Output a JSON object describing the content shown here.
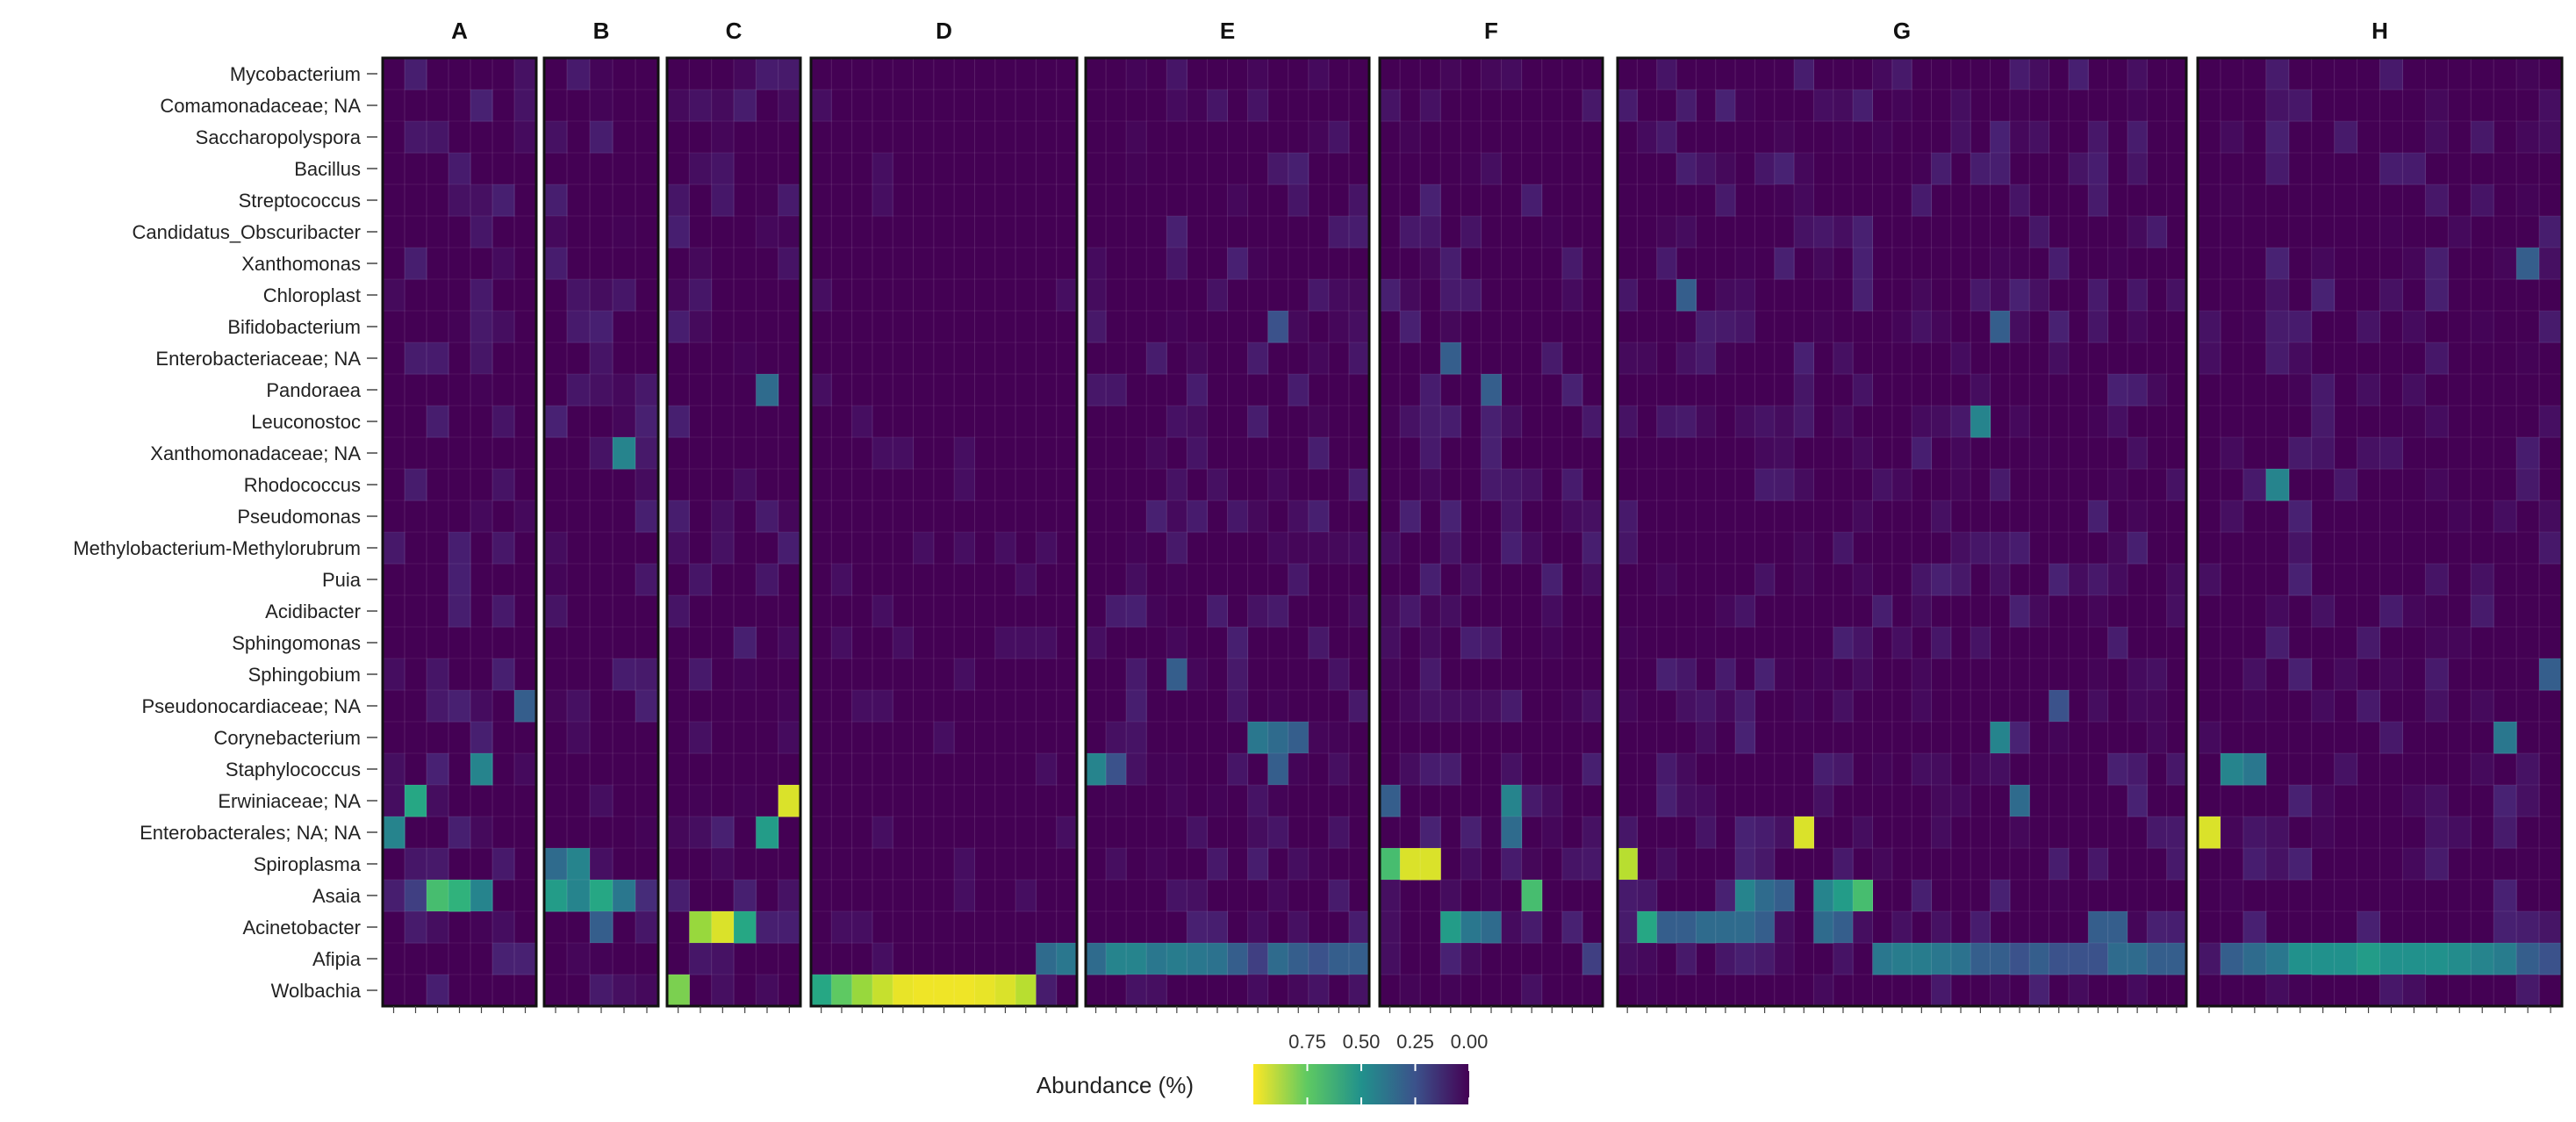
{
  "chart_data": {
    "type": "heatmap",
    "colormap": "viridis",
    "background_color": "#440154",
    "facets": [
      "A",
      "B",
      "C",
      "D",
      "E",
      "F",
      "G",
      "H"
    ],
    "facet_columns": [
      7,
      5,
      6,
      13,
      14,
      11,
      29,
      16
    ],
    "rows": [
      "Mycobacterium",
      "Comamonadaceae; NA",
      "Saccharopolyspora",
      "Bacillus",
      "Streptococcus",
      "Candidatus_Obscuribacter",
      "Xanthomonas",
      "Chloroplast",
      "Bifidobacterium",
      "Enterobacteriaceae; NA",
      "Pandoraea",
      "Leuconostoc",
      "Xanthomonadaceae; NA",
      "Rhodococcus",
      "Pseudomonas",
      "Methylobacterium-Methylorubrum",
      "Puia",
      "Acidibacter",
      "Sphingomonas",
      "Sphingobium",
      "Pseudonocardiaceae; NA",
      "Corynebacterium",
      "Staphylococcus",
      "Erwiniaceae; NA",
      "Enterobacterales; NA; NA",
      "Spiroplasma",
      "Asaia",
      "Acinetobacter",
      "Afipia",
      "Wolbachia"
    ],
    "cells": [
      {
        "facet": "A",
        "row": "Erwiniaceae; NA",
        "col": 1,
        "value": 0.6
      },
      {
        "facet": "A",
        "row": "Enterobacterales; NA; NA",
        "col": 0,
        "value": 0.45
      },
      {
        "facet": "A",
        "row": "Staphylococcus",
        "col": 4,
        "value": 0.45
      },
      {
        "facet": "A",
        "row": "Pseudonocardiaceae; NA",
        "col": 6,
        "value": 0.3
      },
      {
        "facet": "A",
        "row": "Asaia",
        "col": 2,
        "value": 0.7
      },
      {
        "facet": "A",
        "row": "Asaia",
        "col": 3,
        "value": 0.65
      },
      {
        "facet": "A",
        "row": "Asaia",
        "col": 4,
        "value": 0.45
      },
      {
        "facet": "A",
        "row": "Asaia",
        "col": 1,
        "value": 0.2
      },
      {
        "facet": "A",
        "row": "Afipia",
        "col": 5,
        "value": 0.12
      },
      {
        "facet": "A",
        "row": "Afipia",
        "col": 6,
        "value": 0.12
      },
      {
        "facet": "B",
        "row": "Xanthomonadaceae; NA",
        "col": 3,
        "value": 0.45
      },
      {
        "facet": "B",
        "row": "Spiroplasma",
        "col": 0,
        "value": 0.35
      },
      {
        "facet": "B",
        "row": "Spiroplasma",
        "col": 1,
        "value": 0.45
      },
      {
        "facet": "B",
        "row": "Asaia",
        "col": 0,
        "value": 0.55
      },
      {
        "facet": "B",
        "row": "Asaia",
        "col": 1,
        "value": 0.45
      },
      {
        "facet": "B",
        "row": "Asaia",
        "col": 2,
        "value": 0.6
      },
      {
        "facet": "B",
        "row": "Asaia",
        "col": 3,
        "value": 0.4
      },
      {
        "facet": "B",
        "row": "Asaia",
        "col": 4,
        "value": 0.15
      },
      {
        "facet": "B",
        "row": "Acinetobacter",
        "col": 2,
        "value": 0.3
      },
      {
        "facet": "C",
        "row": "Pandoraea",
        "col": 4,
        "value": 0.35
      },
      {
        "facet": "C",
        "row": "Erwiniaceae; NA",
        "col": 5,
        "value": 0.95
      },
      {
        "facet": "C",
        "row": "Enterobacterales; NA; NA",
        "col": 4,
        "value": 0.55
      },
      {
        "facet": "C",
        "row": "Acinetobacter",
        "col": 1,
        "value": 0.85
      },
      {
        "facet": "C",
        "row": "Acinetobacter",
        "col": 2,
        "value": 0.95
      },
      {
        "facet": "C",
        "row": "Acinetobacter",
        "col": 3,
        "value": 0.6
      },
      {
        "facet": "C",
        "row": "Wolbachia",
        "col": 0,
        "value": 0.8
      },
      {
        "facet": "D",
        "row": "Wolbachia",
        "col": 0,
        "value": 0.6
      },
      {
        "facet": "D",
        "row": "Wolbachia",
        "col": 1,
        "value": 0.75
      },
      {
        "facet": "D",
        "row": "Wolbachia",
        "col": 2,
        "value": 0.85
      },
      {
        "facet": "D",
        "row": "Wolbachia",
        "col": 3,
        "value": 0.92
      },
      {
        "facet": "D",
        "row": "Wolbachia",
        "col": 4,
        "value": 0.97
      },
      {
        "facet": "D",
        "row": "Wolbachia",
        "col": 5,
        "value": 0.98
      },
      {
        "facet": "D",
        "row": "Wolbachia",
        "col": 6,
        "value": 0.98
      },
      {
        "facet": "D",
        "row": "Wolbachia",
        "col": 7,
        "value": 0.98
      },
      {
        "facet": "D",
        "row": "Wolbachia",
        "col": 8,
        "value": 0.97
      },
      {
        "facet": "D",
        "row": "Wolbachia",
        "col": 9,
        "value": 0.95
      },
      {
        "facet": "D",
        "row": "Wolbachia",
        "col": 10,
        "value": 0.9
      },
      {
        "facet": "D",
        "row": "Wolbachia",
        "col": 11,
        "value": 0.1
      },
      {
        "facet": "D",
        "row": "Afipia",
        "col": 11,
        "value": 0.35
      },
      {
        "facet": "D",
        "row": "Afipia",
        "col": 12,
        "value": 0.4
      },
      {
        "facet": "E",
        "row": "Afipia",
        "col": 0,
        "value": 0.35
      },
      {
        "facet": "E",
        "row": "Afipia",
        "col": 1,
        "value": 0.45
      },
      {
        "facet": "E",
        "row": "Afipia",
        "col": 2,
        "value": 0.45
      },
      {
        "facet": "E",
        "row": "Afipia",
        "col": 3,
        "value": 0.4
      },
      {
        "facet": "E",
        "row": "Afipia",
        "col": 4,
        "value": 0.42
      },
      {
        "facet": "E",
        "row": "Afipia",
        "col": 5,
        "value": 0.4
      },
      {
        "facet": "E",
        "row": "Afipia",
        "col": 6,
        "value": 0.38
      },
      {
        "facet": "E",
        "row": "Afipia",
        "col": 7,
        "value": 0.3
      },
      {
        "facet": "E",
        "row": "Afipia",
        "col": 8,
        "value": 0.2
      },
      {
        "facet": "E",
        "row": "Afipia",
        "col": 9,
        "value": 0.35
      },
      {
        "facet": "E",
        "row": "Afipia",
        "col": 10,
        "value": 0.3
      },
      {
        "facet": "E",
        "row": "Afipia",
        "col": 11,
        "value": 0.25
      },
      {
        "facet": "E",
        "row": "Afipia",
        "col": 12,
        "value": 0.3
      },
      {
        "facet": "E",
        "row": "Afipia",
        "col": 13,
        "value": 0.3
      },
      {
        "facet": "E",
        "row": "Staphylococcus",
        "col": 0,
        "value": 0.45
      },
      {
        "facet": "E",
        "row": "Staphylococcus",
        "col": 1,
        "value": 0.25
      },
      {
        "facet": "E",
        "row": "Staphylococcus",
        "col": 9,
        "value": 0.3
      },
      {
        "facet": "E",
        "row": "Corynebacterium",
        "col": 8,
        "value": 0.4
      },
      {
        "facet": "E",
        "row": "Corynebacterium",
        "col": 9,
        "value": 0.35
      },
      {
        "facet": "E",
        "row": "Corynebacterium",
        "col": 10,
        "value": 0.3
      },
      {
        "facet": "E",
        "row": "Sphingobium",
        "col": 4,
        "value": 0.3
      },
      {
        "facet": "E",
        "row": "Bifidobacterium",
        "col": 9,
        "value": 0.25
      },
      {
        "facet": "F",
        "row": "Spiroplasma",
        "col": 0,
        "value": 0.7
      },
      {
        "facet": "F",
        "row": "Spiroplasma",
        "col": 1,
        "value": 0.95
      },
      {
        "facet": "F",
        "row": "Spiroplasma",
        "col": 2,
        "value": 0.95
      },
      {
        "facet": "F",
        "row": "Asaia",
        "col": 7,
        "value": 0.7
      },
      {
        "facet": "F",
        "row": "Acinetobacter",
        "col": 3,
        "value": 0.55
      },
      {
        "facet": "F",
        "row": "Acinetobacter",
        "col": 4,
        "value": 0.4
      },
      {
        "facet": "F",
        "row": "Acinetobacter",
        "col": 5,
        "value": 0.35
      },
      {
        "facet": "F",
        "row": "Erwiniaceae; NA",
        "col": 0,
        "value": 0.3
      },
      {
        "facet": "F",
        "row": "Erwiniaceae; NA",
        "col": 6,
        "value": 0.45
      },
      {
        "facet": "F",
        "row": "Enterobacterales; NA; NA",
        "col": 6,
        "value": 0.35
      },
      {
        "facet": "F",
        "row": "Enterobacteriaceae; NA",
        "col": 3,
        "value": 0.3
      },
      {
        "facet": "F",
        "row": "Pandoraea",
        "col": 5,
        "value": 0.3
      },
      {
        "facet": "F",
        "row": "Afipia",
        "col": 10,
        "value": 0.2
      },
      {
        "facet": "G",
        "row": "Spiroplasma",
        "col": 0,
        "value": 0.9
      },
      {
        "facet": "G",
        "row": "Enterobacterales; NA; NA",
        "col": 9,
        "value": 0.95
      },
      {
        "facet": "G",
        "row": "Asaia",
        "col": 6,
        "value": 0.45
      },
      {
        "facet": "G",
        "row": "Asaia",
        "col": 7,
        "value": 0.35
      },
      {
        "facet": "G",
        "row": "Asaia",
        "col": 8,
        "value": 0.3
      },
      {
        "facet": "G",
        "row": "Asaia",
        "col": 10,
        "value": 0.45
      },
      {
        "facet": "G",
        "row": "Asaia",
        "col": 11,
        "value": 0.55
      },
      {
        "facet": "G",
        "row": "Asaia",
        "col": 12,
        "value": 0.7
      },
      {
        "facet": "G",
        "row": "Acinetobacter",
        "col": 1,
        "value": 0.6
      },
      {
        "facet": "G",
        "row": "Acinetobacter",
        "col": 2,
        "value": 0.3
      },
      {
        "facet": "G",
        "row": "Acinetobacter",
        "col": 3,
        "value": 0.3
      },
      {
        "facet": "G",
        "row": "Acinetobacter",
        "col": 4,
        "value": 0.35
      },
      {
        "facet": "G",
        "row": "Acinetobacter",
        "col": 5,
        "value": 0.35
      },
      {
        "facet": "G",
        "row": "Acinetobacter",
        "col": 6,
        "value": 0.35
      },
      {
        "facet": "G",
        "row": "Acinetobacter",
        "col": 7,
        "value": 0.3
      },
      {
        "facet": "G",
        "row": "Acinetobacter",
        "col": 10,
        "value": 0.35
      },
      {
        "facet": "G",
        "row": "Acinetobacter",
        "col": 11,
        "value": 0.3
      },
      {
        "facet": "G",
        "row": "Acinetobacter",
        "col": 24,
        "value": 0.3
      },
      {
        "facet": "G",
        "row": "Acinetobacter",
        "col": 25,
        "value": 0.3
      },
      {
        "facet": "G",
        "row": "Afipia",
        "col": 13,
        "value": 0.4
      },
      {
        "facet": "G",
        "row": "Afipia",
        "col": 14,
        "value": 0.42
      },
      {
        "facet": "G",
        "row": "Afipia",
        "col": 15,
        "value": 0.42
      },
      {
        "facet": "G",
        "row": "Afipia",
        "col": 16,
        "value": 0.4
      },
      {
        "facet": "G",
        "row": "Afipia",
        "col": 17,
        "value": 0.38
      },
      {
        "facet": "G",
        "row": "Afipia",
        "col": 18,
        "value": 0.3
      },
      {
        "facet": "G",
        "row": "Afipia",
        "col": 19,
        "value": 0.3
      },
      {
        "facet": "G",
        "row": "Afipia",
        "col": 20,
        "value": 0.25
      },
      {
        "facet": "G",
        "row": "Afipia",
        "col": 21,
        "value": 0.3
      },
      {
        "facet": "G",
        "row": "Afipia",
        "col": 22,
        "value": 0.25
      },
      {
        "facet": "G",
        "row": "Afipia",
        "col": 23,
        "value": 0.25
      },
      {
        "facet": "G",
        "row": "Afipia",
        "col": 24,
        "value": 0.25
      },
      {
        "facet": "G",
        "row": "Afipia",
        "col": 25,
        "value": 0.35
      },
      {
        "facet": "G",
        "row": "Afipia",
        "col": 26,
        "value": 0.35
      },
      {
        "facet": "G",
        "row": "Afipia",
        "col": 27,
        "value": 0.3
      },
      {
        "facet": "G",
        "row": "Afipia",
        "col": 28,
        "value": 0.3
      },
      {
        "facet": "G",
        "row": "Leuconostoc",
        "col": 18,
        "value": 0.45
      },
      {
        "facet": "G",
        "row": "Bifidobacterium",
        "col": 19,
        "value": 0.3
      },
      {
        "facet": "G",
        "row": "Chloroplast",
        "col": 3,
        "value": 0.3
      },
      {
        "facet": "G",
        "row": "Corynebacterium",
        "col": 19,
        "value": 0.45
      },
      {
        "facet": "G",
        "row": "Erwiniaceae; NA",
        "col": 20,
        "value": 0.35
      },
      {
        "facet": "G",
        "row": "Pseudonocardiaceae; NA",
        "col": 22,
        "value": 0.25
      },
      {
        "facet": "H",
        "row": "Enterobacterales; NA; NA",
        "col": 0,
        "value": 0.95
      },
      {
        "facet": "H",
        "row": "Rhodococcus",
        "col": 3,
        "value": 0.45
      },
      {
        "facet": "H",
        "row": "Staphylococcus",
        "col": 1,
        "value": 0.45
      },
      {
        "facet": "H",
        "row": "Staphylococcus",
        "col": 2,
        "value": 0.4
      },
      {
        "facet": "H",
        "row": "Corynebacterium",
        "col": 13,
        "value": 0.4
      },
      {
        "facet": "H",
        "row": "Xanthomonas",
        "col": 14,
        "value": 0.3
      },
      {
        "facet": "H",
        "row": "Sphingobium",
        "col": 15,
        "value": 0.3
      },
      {
        "facet": "H",
        "row": "Afipia",
        "col": 1,
        "value": 0.3
      },
      {
        "facet": "H",
        "row": "Afipia",
        "col": 2,
        "value": 0.35
      },
      {
        "facet": "H",
        "row": "Afipia",
        "col": 3,
        "value": 0.4
      },
      {
        "facet": "H",
        "row": "Afipia",
        "col": 4,
        "value": 0.5
      },
      {
        "facet": "H",
        "row": "Afipia",
        "col": 5,
        "value": 0.5
      },
      {
        "facet": "H",
        "row": "Afipia",
        "col": 6,
        "value": 0.5
      },
      {
        "facet": "H",
        "row": "Afipia",
        "col": 7,
        "value": 0.55
      },
      {
        "facet": "H",
        "row": "Afipia",
        "col": 8,
        "value": 0.5
      },
      {
        "facet": "H",
        "row": "Afipia",
        "col": 9,
        "value": 0.5
      },
      {
        "facet": "H",
        "row": "Afipia",
        "col": 10,
        "value": 0.5
      },
      {
        "facet": "H",
        "row": "Afipia",
        "col": 11,
        "value": 0.48
      },
      {
        "facet": "H",
        "row": "Afipia",
        "col": 12,
        "value": 0.45
      },
      {
        "facet": "H",
        "row": "Afipia",
        "col": 13,
        "value": 0.42
      },
      {
        "facet": "H",
        "row": "Afipia",
        "col": 14,
        "value": 0.3
      },
      {
        "facet": "H",
        "row": "Afipia",
        "col": 15,
        "value": 0.25
      }
    ],
    "legend": {
      "title": "Abundance (%)",
      "tick_labels": [
        "0.75",
        "0.50",
        "0.25",
        "0.00"
      ],
      "tick_values": [
        0.75,
        0.5,
        0.25,
        0.0
      ],
      "range": [
        1.0,
        0.0
      ],
      "position": "bottom-center"
    },
    "xlabel": "",
    "ylabel": ""
  }
}
